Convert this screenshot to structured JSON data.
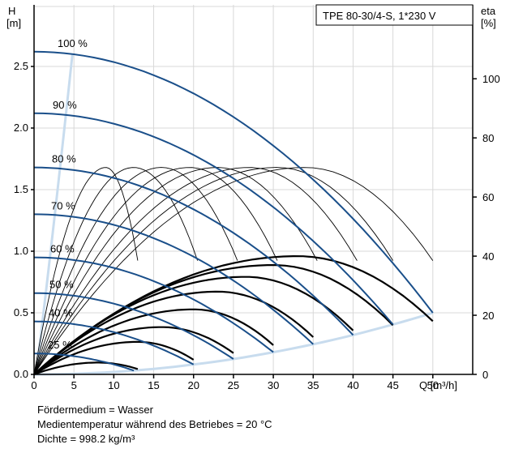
{
  "chart_data": {
    "type": "line",
    "title": "TPE 80-30/4-S, 1*230 V",
    "left_axis": {
      "label_top": "H",
      "label_unit": "[m]",
      "range": [
        0,
        3.0
      ],
      "ticks": [
        "0.0",
        "0.5",
        "1.0",
        "1.5",
        "2.0",
        "2.5"
      ]
    },
    "right_axis": {
      "label_top": "eta",
      "label_unit": "[%]",
      "range": [
        0,
        125
      ],
      "ticks": [
        "0",
        "20",
        "40",
        "60",
        "80",
        "100"
      ]
    },
    "x_axis": {
      "label": "Q [m³/h]",
      "range": [
        0,
        55
      ],
      "ticks": [
        "0",
        "5",
        "10",
        "15",
        "20",
        "25",
        "30",
        "35",
        "40",
        "45",
        "50"
      ]
    },
    "grid": true,
    "pump_curves": [
      {
        "name": "100 %",
        "H0": 2.62,
        "Qmax": 50
      },
      {
        "name": "90 %",
        "H0": 2.12,
        "Qmax": 45
      },
      {
        "name": "80 %",
        "H0": 1.68,
        "Qmax": 40
      },
      {
        "name": "70 %",
        "H0": 1.3,
        "Qmax": 35
      },
      {
        "name": "60 %",
        "H0": 0.95,
        "Qmax": 30
      },
      {
        "name": "50 %",
        "H0": 0.66,
        "Qmax": 25
      },
      {
        "name": "40 %",
        "H0": 0.43,
        "Qmax": 20
      },
      {
        "name": "25 %",
        "H0": 0.17,
        "Qmax": 12.5
      }
    ],
    "efficiency_curves": [
      {
        "Qpeak": 33,
        "peak": 40,
        "Qend": 50
      },
      {
        "Qpeak": 30,
        "peak": 37,
        "Qend": 45
      },
      {
        "Qpeak": 26.5,
        "peak": 33,
        "Qend": 40
      },
      {
        "Qpeak": 23,
        "peak": 28,
        "Qend": 35
      },
      {
        "Qpeak": 20,
        "peak": 22,
        "Qend": 30
      },
      {
        "Qpeak": 16,
        "peak": 16,
        "Qend": 25
      },
      {
        "Qpeak": 13,
        "peak": 11,
        "Qend": 20
      },
      {
        "Qpeak": 8,
        "peak": 4,
        "Qend": 13
      }
    ],
    "power_curves": [
      {
        "Qpeak": 9,
        "peak": 1.68,
        "Qend": 13
      },
      {
        "Qpeak": 12.5,
        "peak": 1.68,
        "Qend": 20.5
      },
      {
        "Qpeak": 16,
        "peak": 1.68,
        "Qend": 25.5
      },
      {
        "Qpeak": 19.5,
        "peak": 1.68,
        "Qend": 30.5
      },
      {
        "Qpeak": 23,
        "peak": 1.68,
        "Qend": 35.5
      },
      {
        "Qpeak": 27,
        "peak": 1.68,
        "Qend": 40.5
      },
      {
        "Qpeak": 30.5,
        "peak": 1.68,
        "Qend": 45
      },
      {
        "Qpeak": 34,
        "peak": 1.68,
        "Qend": 50
      }
    ],
    "system_curve": {
      "Qmax": 50,
      "Hmax": 0.5
    }
  },
  "notes": {
    "line1": "Fördermedium = Wasser",
    "line2": "Medientemperatur während des Betriebes = 20 °C",
    "line3": "Dichte = 998.2 kg/m³"
  }
}
